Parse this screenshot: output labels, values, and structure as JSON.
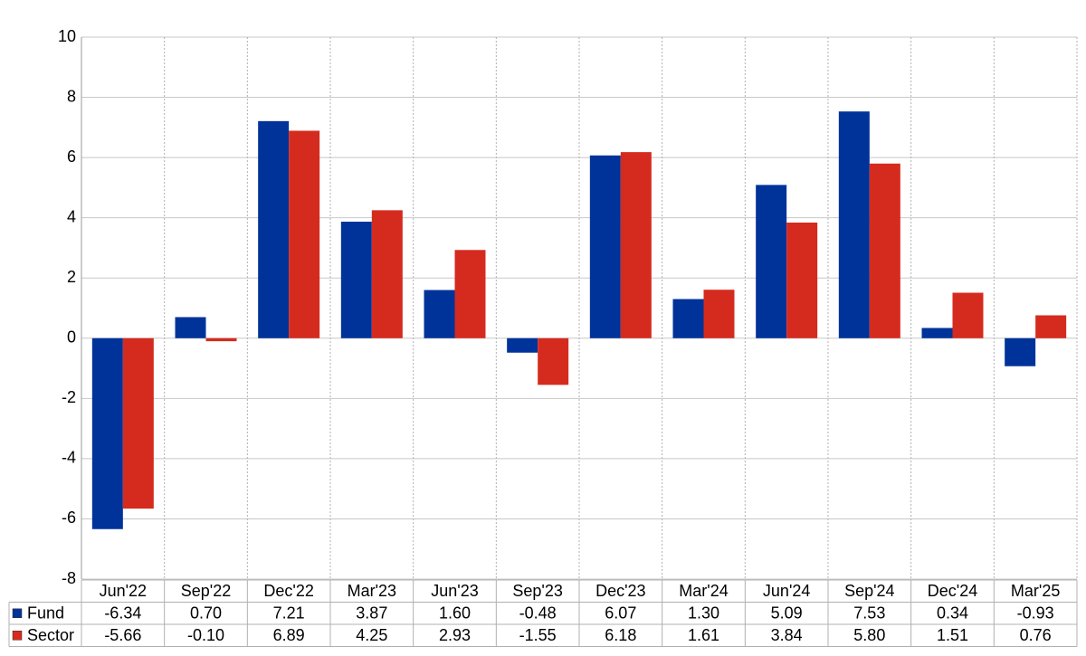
{
  "chart_data": {
    "type": "bar",
    "categories": [
      "Jun'22",
      "Sep'22",
      "Dec'22",
      "Mar'23",
      "Jun'23",
      "Sep'23",
      "Dec'23",
      "Mar'24",
      "Jun'24",
      "Sep'24",
      "Dec'24",
      "Mar'25"
    ],
    "series": [
      {
        "name": "Fund",
        "color": "#003399",
        "values": [
          -6.34,
          0.7,
          7.21,
          3.87,
          1.6,
          -0.48,
          6.07,
          1.3,
          5.09,
          7.53,
          0.34,
          -0.93
        ],
        "value_labels": [
          "-6.34",
          "0.70",
          "7.21",
          "3.87",
          "1.60",
          "-0.48",
          "6.07",
          "1.30",
          "5.09",
          "7.53",
          "0.34",
          "-0.93"
        ]
      },
      {
        "name": "Sector",
        "color": "#d52b1e",
        "values": [
          -5.66,
          -0.1,
          6.89,
          4.25,
          2.93,
          -1.55,
          6.18,
          1.61,
          3.84,
          5.8,
          1.51,
          0.76
        ],
        "value_labels": [
          "-5.66",
          "-0.10",
          "6.89",
          "4.25",
          "2.93",
          "-1.55",
          "6.18",
          "1.61",
          "3.84",
          "5.80",
          "1.51",
          "0.76"
        ]
      }
    ],
    "ylim": [
      -8,
      10
    ],
    "yticks": [
      -8,
      -6,
      -4,
      -2,
      0,
      2,
      4,
      6,
      8,
      10
    ],
    "grid": true,
    "negative_label_color": "#ff0000"
  }
}
